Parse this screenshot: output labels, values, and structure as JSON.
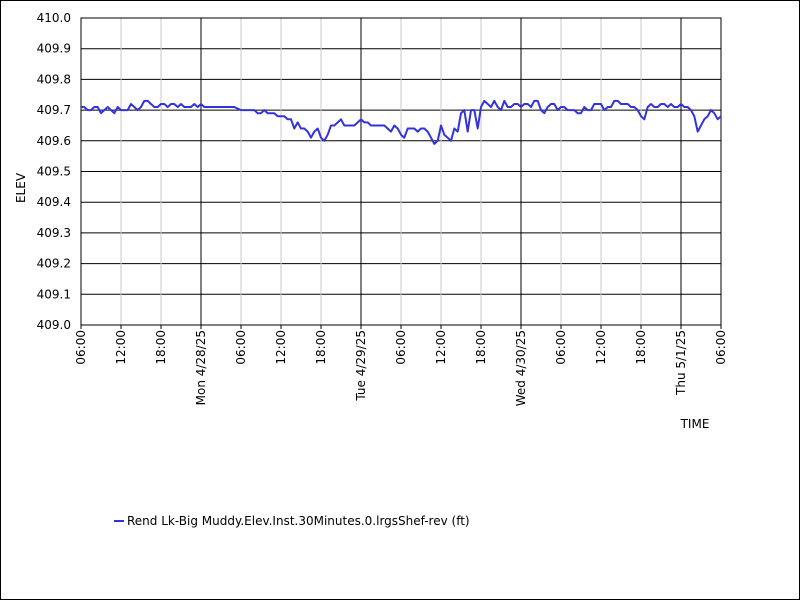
{
  "chart_data": {
    "type": "line",
    "title": "",
    "xlabel": "TIME",
    "ylabel": "ELEV",
    "ylim": [
      409.0,
      410.0
    ],
    "yticks": [
      "410.0",
      "409.9",
      "409.8",
      "409.7",
      "409.6",
      "409.5",
      "409.4",
      "409.3",
      "409.2",
      "409.1",
      "409.0"
    ],
    "xlim_hours": [
      0,
      96
    ],
    "xticks": [
      {
        "label": "06:00",
        "hour": 0,
        "major": false
      },
      {
        "label": "12:00",
        "hour": 6,
        "major": false
      },
      {
        "label": "18:00",
        "hour": 12,
        "major": false
      },
      {
        "label": "Mon 4/28/25",
        "hour": 18,
        "major": true
      },
      {
        "label": "06:00",
        "hour": 24,
        "major": false
      },
      {
        "label": "12:00",
        "hour": 30,
        "major": false
      },
      {
        "label": "18:00",
        "hour": 36,
        "major": false
      },
      {
        "label": "Tue 4/29/25",
        "hour": 42,
        "major": true
      },
      {
        "label": "06:00",
        "hour": 48,
        "major": false
      },
      {
        "label": "12:00",
        "hour": 54,
        "major": false
      },
      {
        "label": "18:00",
        "hour": 60,
        "major": false
      },
      {
        "label": "Wed 4/30/25",
        "hour": 66,
        "major": true
      },
      {
        "label": "06:00",
        "hour": 72,
        "major": false
      },
      {
        "label": "12:00",
        "hour": 78,
        "major": false
      },
      {
        "label": "18:00",
        "hour": 84,
        "major": false
      },
      {
        "label": "Thu 5/1/25",
        "hour": 90,
        "major": true
      },
      {
        "label": "06:00",
        "hour": 96,
        "major": false
      }
    ],
    "grid": true,
    "legend_position": "bottom-left",
    "series": [
      {
        "name": "Rend Lk-Big Muddy.Elev.Inst.30Minutes.0.lrgsShef-rev (ft)",
        "color": "#3333dd",
        "points": [
          [
            0,
            409.71
          ],
          [
            0.5,
            409.71
          ],
          [
            1,
            409.7
          ],
          [
            1.5,
            409.7
          ],
          [
            2,
            409.71
          ],
          [
            2.5,
            409.71
          ],
          [
            3,
            409.69
          ],
          [
            3.5,
            409.7
          ],
          [
            4,
            409.71
          ],
          [
            4.5,
            409.7
          ],
          [
            5,
            409.69
          ],
          [
            5.5,
            409.71
          ],
          [
            6,
            409.7
          ],
          [
            6.5,
            409.7
          ],
          [
            7,
            409.7
          ],
          [
            7.5,
            409.72
          ],
          [
            8,
            409.71
          ],
          [
            8.5,
            409.7
          ],
          [
            9,
            409.71
          ],
          [
            9.5,
            409.73
          ],
          [
            10,
            409.73
          ],
          [
            10.5,
            409.72
          ],
          [
            11,
            409.71
          ],
          [
            11.5,
            409.71
          ],
          [
            12,
            409.72
          ],
          [
            12.5,
            409.72
          ],
          [
            13,
            409.71
          ],
          [
            13.5,
            409.72
          ],
          [
            14,
            409.72
          ],
          [
            14.5,
            409.71
          ],
          [
            15,
            409.72
          ],
          [
            15.5,
            409.71
          ],
          [
            16,
            409.71
          ],
          [
            16.5,
            409.71
          ],
          [
            17,
            409.72
          ],
          [
            17.5,
            409.71
          ],
          [
            18,
            409.72
          ],
          [
            18.5,
            409.71
          ],
          [
            19,
            409.71
          ],
          [
            20,
            409.71
          ],
          [
            21,
            409.71
          ],
          [
            22,
            409.71
          ],
          [
            23,
            409.71
          ],
          [
            24,
            409.7
          ],
          [
            25,
            409.7
          ],
          [
            26,
            409.7
          ],
          [
            26.5,
            409.69
          ],
          [
            27,
            409.69
          ],
          [
            27.5,
            409.7
          ],
          [
            28,
            409.69
          ],
          [
            28.5,
            409.69
          ],
          [
            29,
            409.69
          ],
          [
            29.5,
            409.68
          ],
          [
            30,
            409.68
          ],
          [
            30.5,
            409.68
          ],
          [
            31,
            409.67
          ],
          [
            31.5,
            409.67
          ],
          [
            32,
            409.64
          ],
          [
            32.5,
            409.66
          ],
          [
            33,
            409.64
          ],
          [
            33.5,
            409.64
          ],
          [
            34,
            409.63
          ],
          [
            34.5,
            409.61
          ],
          [
            35,
            409.63
          ],
          [
            35.5,
            409.64
          ],
          [
            36,
            409.61
          ],
          [
            36.5,
            409.6
          ],
          [
            37,
            409.62
          ],
          [
            37.5,
            409.65
          ],
          [
            38,
            409.65
          ],
          [
            38.5,
            409.66
          ],
          [
            39,
            409.67
          ],
          [
            39.5,
            409.65
          ],
          [
            40,
            409.65
          ],
          [
            40.5,
            409.65
          ],
          [
            41,
            409.65
          ],
          [
            41.5,
            409.66
          ],
          [
            42,
            409.67
          ],
          [
            42.5,
            409.66
          ],
          [
            43,
            409.66
          ],
          [
            43.5,
            409.65
          ],
          [
            44,
            409.65
          ],
          [
            44.5,
            409.65
          ],
          [
            45,
            409.65
          ],
          [
            45.5,
            409.65
          ],
          [
            46,
            409.64
          ],
          [
            46.5,
            409.63
          ],
          [
            47,
            409.65
          ],
          [
            47.5,
            409.64
          ],
          [
            48,
            409.62
          ],
          [
            48.5,
            409.61
          ],
          [
            49,
            409.64
          ],
          [
            49.5,
            409.64
          ],
          [
            50,
            409.64
          ],
          [
            50.5,
            409.63
          ],
          [
            51,
            409.64
          ],
          [
            51.5,
            409.64
          ],
          [
            52,
            409.63
          ],
          [
            52.5,
            409.61
          ],
          [
            53,
            409.59
          ],
          [
            53.5,
            409.6
          ],
          [
            54,
            409.65
          ],
          [
            54.5,
            409.62
          ],
          [
            55,
            409.61
          ],
          [
            55.5,
            409.6
          ],
          [
            56,
            409.64
          ],
          [
            56.5,
            409.63
          ],
          [
            57,
            409.69
          ],
          [
            57.5,
            409.7
          ],
          [
            58,
            409.63
          ],
          [
            58.5,
            409.7
          ],
          [
            59,
            409.7
          ],
          [
            59.5,
            409.64
          ],
          [
            60,
            409.71
          ],
          [
            60.5,
            409.73
          ],
          [
            61,
            409.72
          ],
          [
            61.5,
            409.71
          ],
          [
            62,
            409.73
          ],
          [
            62.5,
            409.71
          ],
          [
            63,
            409.7
          ],
          [
            63.5,
            409.73
          ],
          [
            64,
            409.71
          ],
          [
            64.5,
            409.71
          ],
          [
            65,
            409.72
          ],
          [
            65.5,
            409.72
          ],
          [
            66,
            409.71
          ],
          [
            66.5,
            409.72
          ],
          [
            67,
            409.72
          ],
          [
            67.5,
            409.71
          ],
          [
            68,
            409.73
          ],
          [
            68.5,
            409.73
          ],
          [
            69,
            409.7
          ],
          [
            69.5,
            409.69
          ],
          [
            70,
            409.71
          ],
          [
            70.5,
            409.72
          ],
          [
            71,
            409.72
          ],
          [
            71.5,
            409.7
          ],
          [
            72,
            409.71
          ],
          [
            72.5,
            409.71
          ],
          [
            73,
            409.7
          ],
          [
            73.5,
            409.7
          ],
          [
            74,
            409.7
          ],
          [
            74.5,
            409.69
          ],
          [
            75,
            409.69
          ],
          [
            75.5,
            409.71
          ],
          [
            76,
            409.7
          ],
          [
            76.5,
            409.7
          ],
          [
            77,
            409.72
          ],
          [
            77.5,
            409.72
          ],
          [
            78,
            409.72
          ],
          [
            78.5,
            409.7
          ],
          [
            79,
            409.71
          ],
          [
            79.5,
            409.71
          ],
          [
            80,
            409.73
          ],
          [
            80.5,
            409.73
          ],
          [
            81,
            409.72
          ],
          [
            81.5,
            409.72
          ],
          [
            82,
            409.72
          ],
          [
            82.5,
            409.71
          ],
          [
            83,
            409.71
          ],
          [
            83.5,
            409.7
          ],
          [
            84,
            409.68
          ],
          [
            84.5,
            409.67
          ],
          [
            85,
            409.71
          ],
          [
            85.5,
            409.72
          ],
          [
            86,
            409.71
          ],
          [
            86.5,
            409.71
          ],
          [
            87,
            409.72
          ],
          [
            87.5,
            409.72
          ],
          [
            88,
            409.71
          ],
          [
            88.5,
            409.72
          ],
          [
            89,
            409.71
          ],
          [
            89.5,
            409.71
          ],
          [
            90,
            409.72
          ],
          [
            90.5,
            409.71
          ],
          [
            91,
            409.71
          ],
          [
            91.5,
            409.7
          ],
          [
            92,
            409.68
          ],
          [
            92.5,
            409.63
          ],
          [
            93,
            409.65
          ],
          [
            93.5,
            409.67
          ],
          [
            94,
            409.68
          ],
          [
            94.5,
            409.7
          ],
          [
            95,
            409.69
          ],
          [
            95.5,
            409.67
          ],
          [
            96,
            409.68
          ]
        ]
      }
    ]
  }
}
